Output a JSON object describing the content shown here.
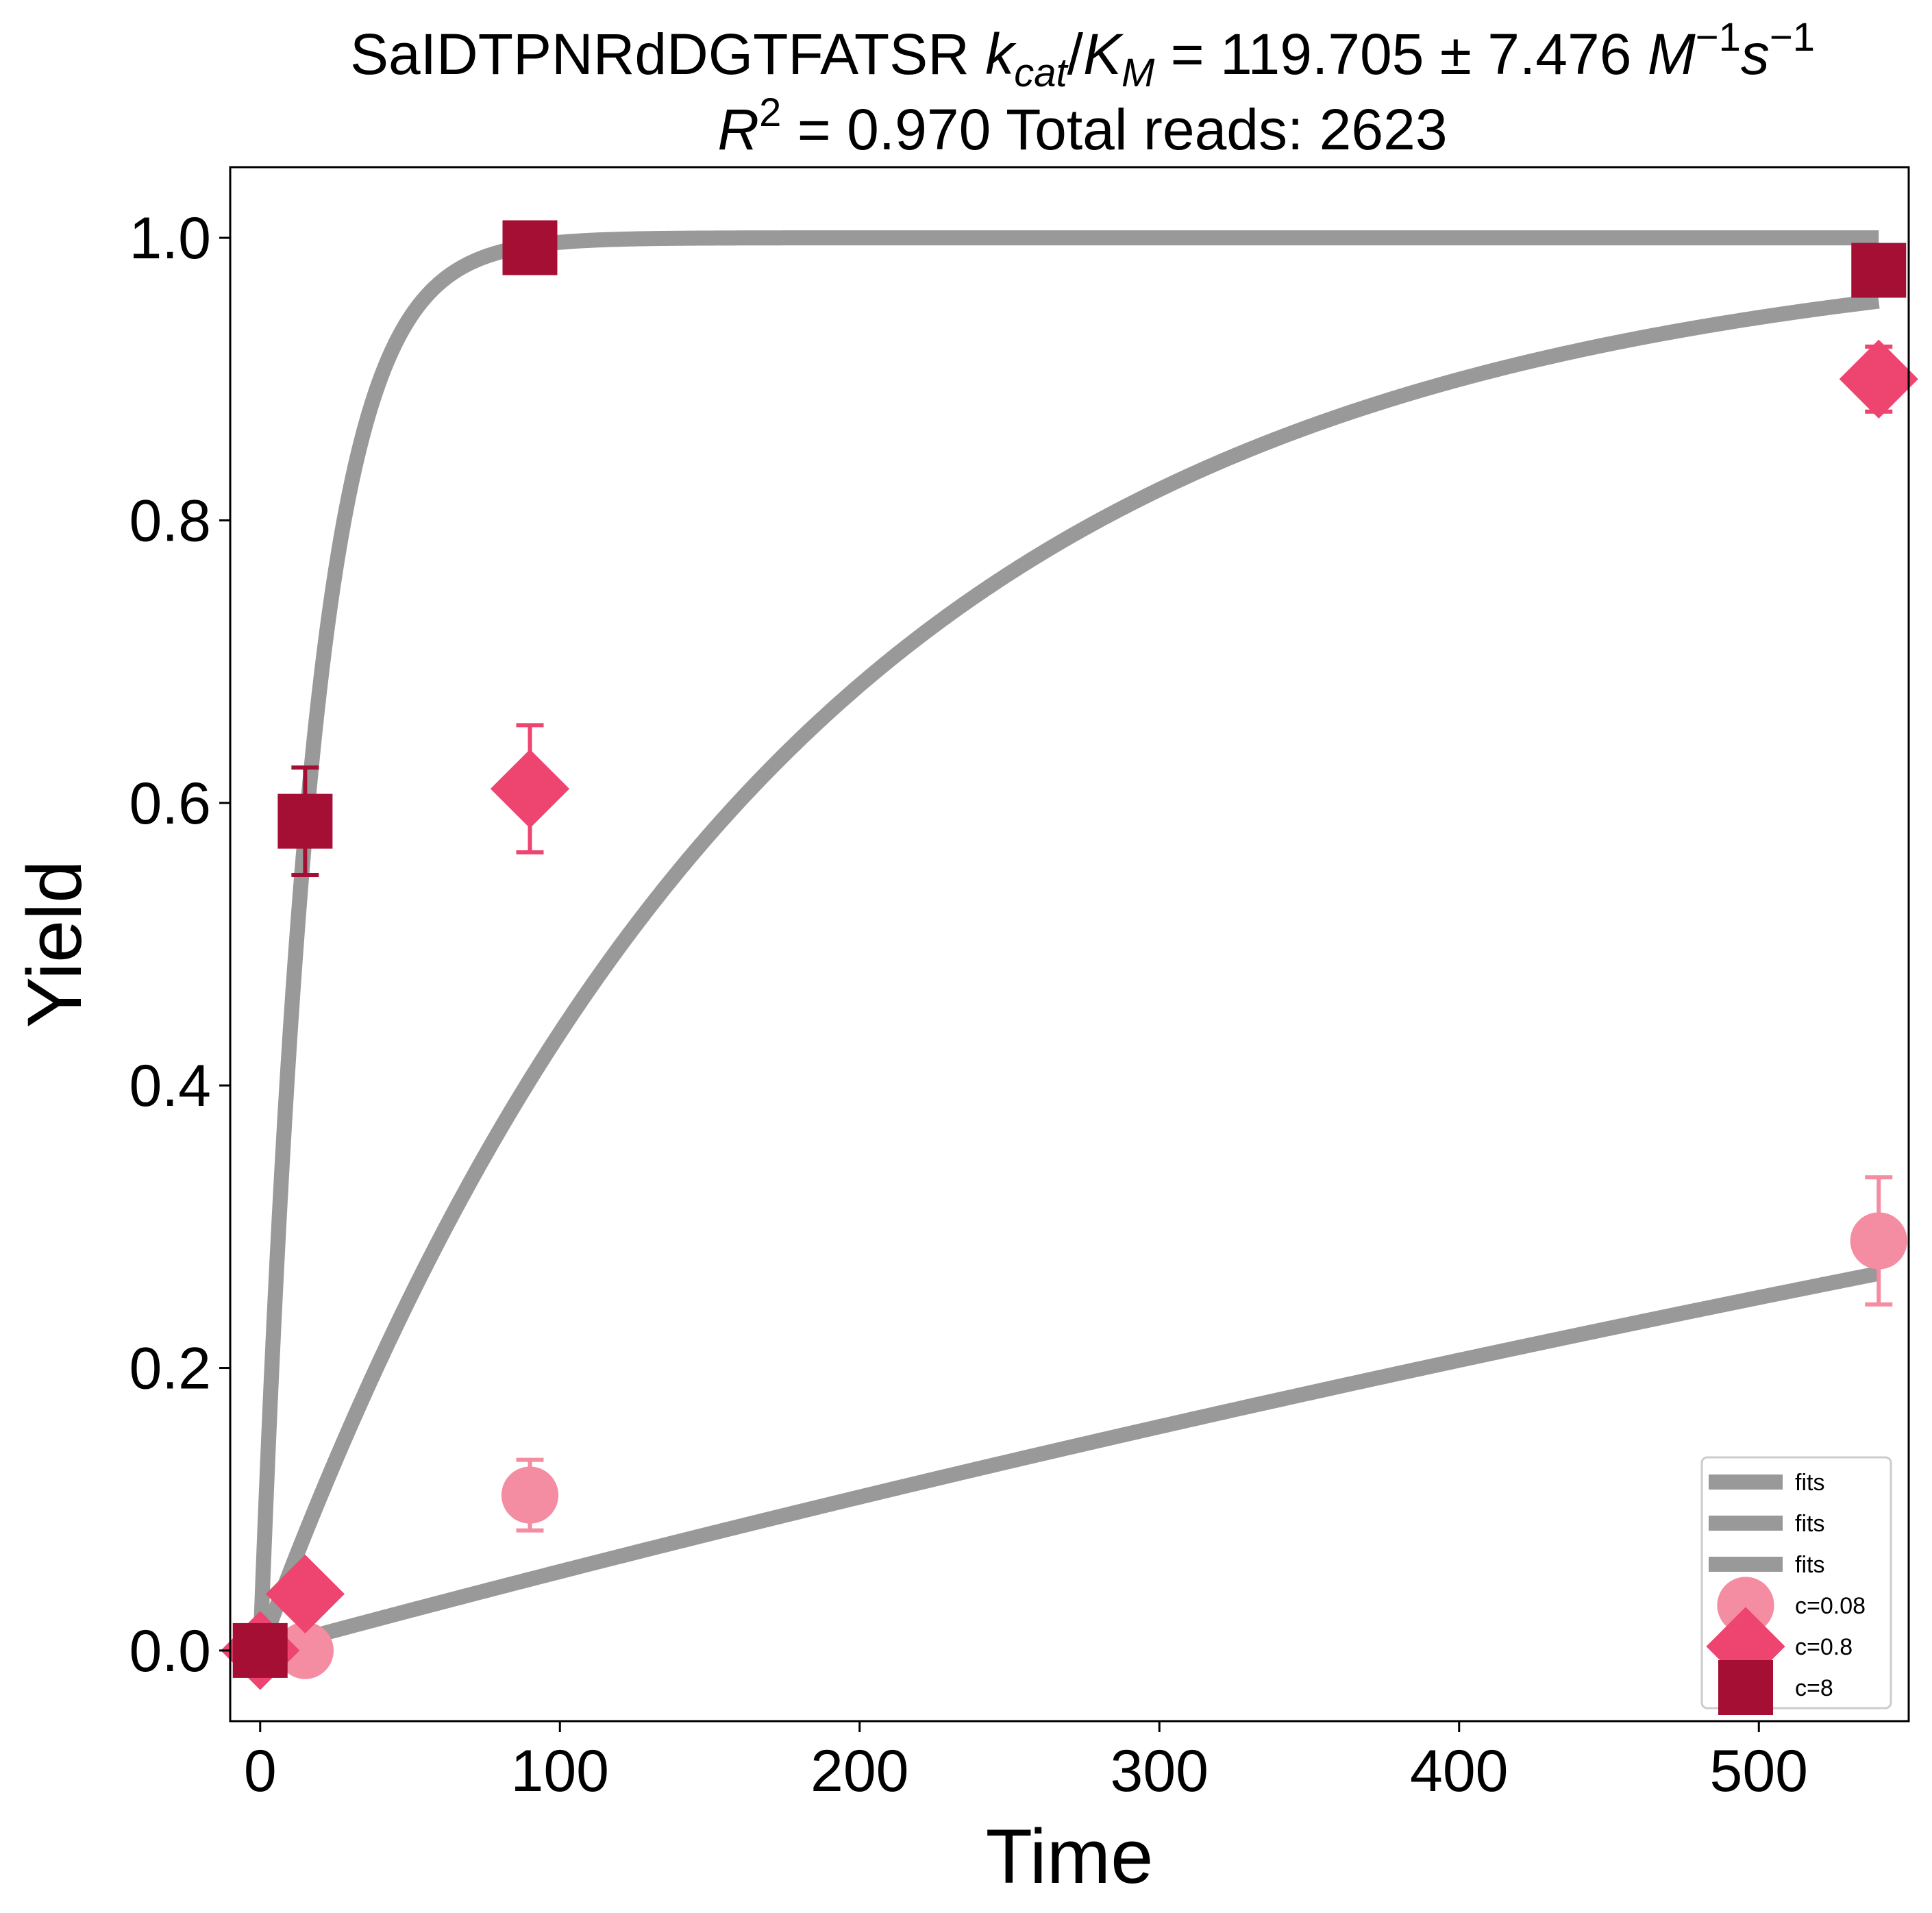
{
  "chart_data": {
    "type": "scatter",
    "title": {
      "line1_prefix": "SaIDTPNRdDGTFATSR ",
      "k": "k",
      "k_sub": "cat",
      "slash": "/",
      "K": "K",
      "K_sub": "M",
      "value": " = 119.705 ± 7.476 ",
      "M": "M",
      "M_sup": "−1",
      "s": "s",
      "s_sup": "−1",
      "line2_R": "R",
      "line2_R_sup": "2",
      "line2_rest": " = 0.970 Total reads: 2623"
    },
    "xlabel": "Time",
    "ylabel": "Yield",
    "xlim": [
      -10,
      550
    ],
    "ylim": [
      -0.05,
      1.05
    ],
    "x_ticks": [
      0,
      100,
      200,
      300,
      400,
      500
    ],
    "x_tick_labels": [
      "0",
      "100",
      "200",
      "300",
      "400",
      "500"
    ],
    "y_ticks": [
      0.0,
      0.2,
      0.4,
      0.6,
      0.8,
      1.0
    ],
    "y_tick_labels": [
      "0.0",
      "0.2",
      "0.4",
      "0.6",
      "0.8",
      "1.0"
    ],
    "grid": false,
    "legend_position": "lower-right",
    "fit_color": "#999999",
    "fits": [
      {
        "name": "fits",
        "k": 0.000575,
        "t_max": 540
      },
      {
        "name": "fits",
        "k": 0.00575,
        "t_max": 540
      },
      {
        "name": "fits",
        "k": 0.0575,
        "t_max": 540
      }
    ],
    "series": [
      {
        "name": "c=0.08",
        "marker": "circle",
        "color": "#f48ca2",
        "x": [
          0,
          15,
          90,
          540
        ],
        "y": [
          0.0,
          0.0,
          0.11,
          0.29
        ],
        "yerr": [
          0.0,
          0.0,
          0.025,
          0.045
        ]
      },
      {
        "name": "c=0.8",
        "marker": "diamond",
        "color": "#ee4470",
        "x": [
          0,
          15,
          90,
          540
        ],
        "y": [
          0.0,
          0.04,
          0.61,
          0.9
        ],
        "yerr": [
          0.0,
          0.0,
          0.045,
          0.023
        ]
      },
      {
        "name": "c=8",
        "marker": "square",
        "color": "#a50f34",
        "x": [
          0,
          15,
          90,
          540
        ],
        "y": [
          0.0,
          0.587,
          0.993,
          0.977
        ],
        "yerr": [
          0.0,
          0.038,
          0.0,
          0.0
        ]
      }
    ]
  }
}
